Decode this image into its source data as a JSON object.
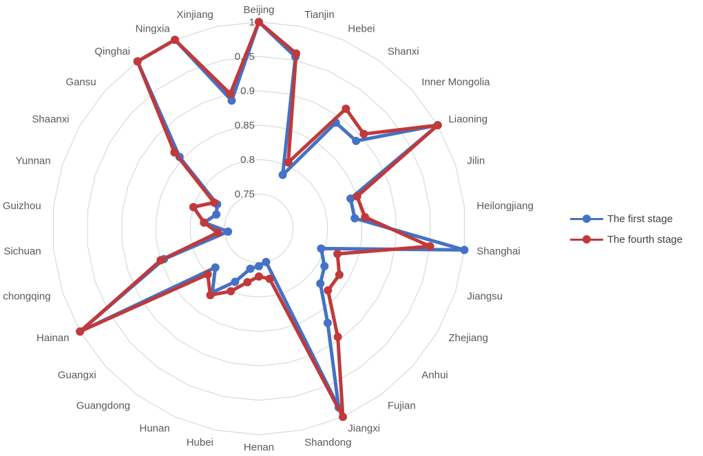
{
  "chart_data": {
    "type": "radar",
    "categories": [
      "Beijing",
      "Tianjin",
      "Hebei",
      "Shanxi",
      "Inner Mongolia",
      "Liaoning",
      "Jilin",
      "Heilongjiang",
      "Shanghai",
      "Jiangsu",
      "Zhejiang",
      "Anhui",
      "Fujian",
      "Jiangxi",
      "Shandong",
      "Henan",
      "Hubei",
      "Hunan",
      "Guangdong",
      "Guangxi",
      "Hainan",
      "chongqing",
      "Sichuan",
      "Guizhou",
      "Yunnan",
      "Shaanxi",
      "Gansu",
      "Qinghai",
      "Ningxia",
      "Xinjiang"
    ],
    "axis_ticks": [
      "0.75",
      "0.8",
      "0.85",
      "0.9",
      "0.95",
      "1"
    ],
    "rlim": [
      0.7,
      1.0
    ],
    "grid": true,
    "legend_position": "right",
    "series": [
      {
        "name": "The first stage",
        "color": "#4472c4",
        "values": [
          1.0,
          0.955,
          0.785,
          0.89,
          0.89,
          1.0,
          0.84,
          0.84,
          1.0,
          0.795,
          0.81,
          0.82,
          0.87,
          0.985,
          0.75,
          0.755,
          0.76,
          0.785,
          0.815,
          0.785,
          1.0,
          0.845,
          0.745,
          0.78,
          0.765,
          0.77,
          0.855,
          1.0,
          1.0,
          0.89
        ]
      },
      {
        "name": "The fourth stage",
        "color": "#c0393b",
        "values": [
          1.0,
          0.96,
          0.805,
          0.915,
          0.905,
          1.0,
          0.85,
          0.855,
          0.95,
          0.82,
          0.835,
          0.835,
          0.895,
          1.0,
          0.775,
          0.77,
          0.78,
          0.8,
          0.82,
          0.8,
          1.0,
          0.85,
          0.76,
          0.78,
          0.8,
          0.775,
          0.865,
          1.0,
          1.0,
          0.9
        ]
      }
    ]
  }
}
